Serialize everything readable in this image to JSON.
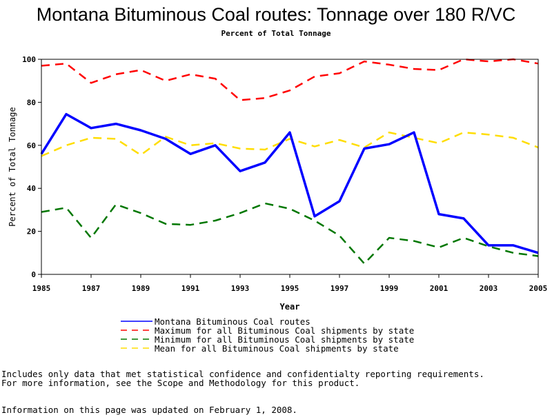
{
  "title": "Montana Bituminous Coal routes: Tonnage over 180 R/VC",
  "subtitle": "Percent of Total Tonnage",
  "colors": {
    "montana": "#0000ff",
    "maximum": "#ff0000",
    "minimum": "#007700",
    "mean": "#ffdd00"
  },
  "chart_data": {
    "type": "line",
    "xlabel": "Year",
    "ylabel": "Percent of Total Tonnage",
    "xlim": [
      1985,
      2005
    ],
    "ylim": [
      0,
      100
    ],
    "x_ticks": [
      "1985",
      "1987",
      "1989",
      "1991",
      "1993",
      "1995",
      "1997",
      "1999",
      "2001",
      "2003",
      "2005"
    ],
    "y_ticks": [
      "0",
      "20",
      "40",
      "60",
      "80",
      "100"
    ],
    "x": [
      1985,
      1986,
      1987,
      1988,
      1989,
      1990,
      1991,
      1992,
      1993,
      1994,
      1995,
      1996,
      1997,
      1998,
      1999,
      2000,
      2001,
      2002,
      2003,
      2004,
      2005
    ],
    "series": [
      {
        "name": "Montana Bituminous Coal routes",
        "style": "solid",
        "values": [
          56,
          74.5,
          68,
          70,
          67,
          63,
          56,
          60,
          48,
          52,
          66,
          27,
          34,
          58.5,
          60.5,
          66,
          28,
          26,
          13.5,
          13.5,
          10
        ]
      },
      {
        "name": "Maximum for all Bituminous Coal shipments by state",
        "style": "dashed",
        "values": [
          97,
          98,
          89,
          93,
          95,
          90,
          93,
          91,
          81,
          82,
          85.5,
          92,
          93.5,
          99,
          97.5,
          95.5,
          95,
          100,
          99,
          100,
          98
        ]
      },
      {
        "name": "Minimum for all Bituminous Coal shipments by state",
        "style": "dashed",
        "values": [
          29,
          31,
          17,
          32.5,
          28.5,
          23.5,
          23,
          25,
          28.5,
          33,
          30.5,
          25,
          18,
          5,
          17,
          15.5,
          12.5,
          17,
          13,
          10,
          8.5
        ]
      },
      {
        "name": "Mean for all Bituminous Coal shipments by state",
        "style": "dashed",
        "values": [
          55,
          60,
          63.5,
          63,
          55.5,
          64,
          60,
          61,
          58.5,
          58,
          63,
          59.5,
          62.5,
          59,
          66,
          63.5,
          61,
          66,
          65,
          63.5,
          59
        ]
      }
    ]
  },
  "notes": {
    "line1": "Includes only data that met statistical confidence and confidentialty reporting requirements.",
    "line2": "For more information, see the Scope and Methodology for this product.",
    "updated": "Information on this page was updated on February 1, 2008."
  }
}
